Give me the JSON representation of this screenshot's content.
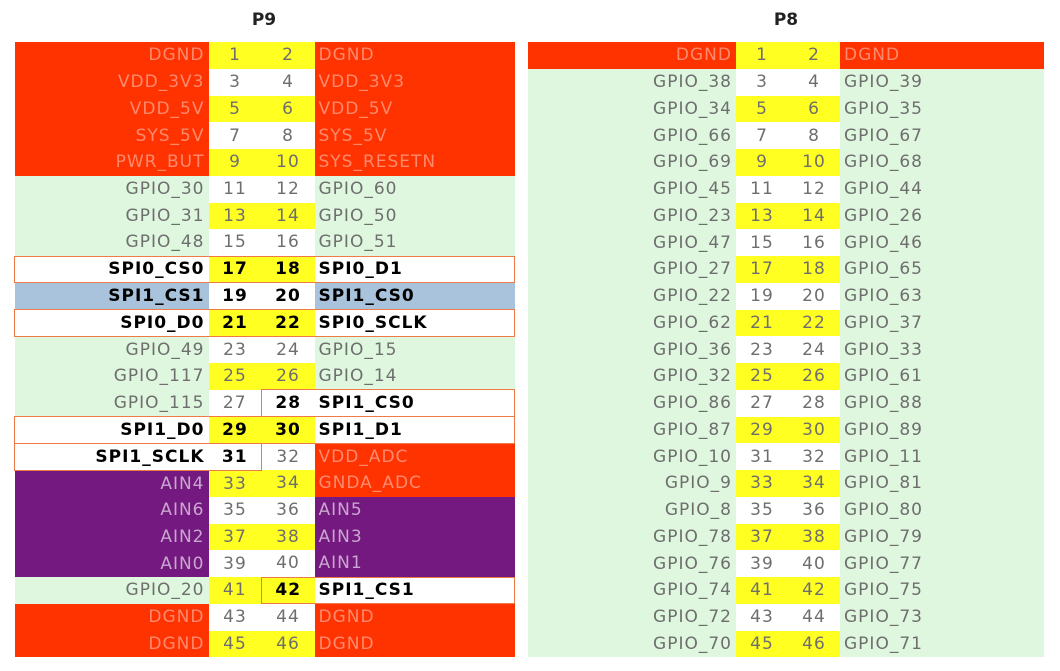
{
  "p9": {
    "title": "P9",
    "rows": [
      {
        "l": "DGND",
        "p1": "1",
        "p2": "2",
        "r": "DGND"
      },
      {
        "l": "VDD_3V3",
        "p1": "3",
        "p2": "4",
        "r": "VDD_3V3"
      },
      {
        "l": "VDD_5V",
        "p1": "5",
        "p2": "6",
        "r": "VDD_5V"
      },
      {
        "l": "SYS_5V",
        "p1": "7",
        "p2": "8",
        "r": "SYS_5V"
      },
      {
        "l": "PWR_BUT",
        "p1": "9",
        "p2": "10",
        "r": "SYS_RESETN"
      },
      {
        "l": "GPIO_30",
        "p1": "11",
        "p2": "12",
        "r": "GPIO_60"
      },
      {
        "l": "GPIO_31",
        "p1": "13",
        "p2": "14",
        "r": "GPIO_50"
      },
      {
        "l": "GPIO_48",
        "p1": "15",
        "p2": "16",
        "r": "GPIO_51"
      },
      {
        "l": "SPI0_CS0",
        "p1": "17",
        "p2": "18",
        "r": "SPI0_D1"
      },
      {
        "l": "SPI1_CS1",
        "p1": "19",
        "p2": "20",
        "r": "SPI1_CS0"
      },
      {
        "l": "SPI0_D0",
        "p1": "21",
        "p2": "22",
        "r": "SPI0_SCLK"
      },
      {
        "l": "GPIO_49",
        "p1": "23",
        "p2": "24",
        "r": "GPIO_15"
      },
      {
        "l": "GPIO_117",
        "p1": "25",
        "p2": "26",
        "r": "GPIO_14"
      },
      {
        "l": "GPIO_115",
        "p1": "27",
        "p2": "28",
        "r": "SPI1_CS0"
      },
      {
        "l": "SPI1_D0",
        "p1": "29",
        "p2": "30",
        "r": "SPI1_D1"
      },
      {
        "l": "SPI1_SCLK",
        "p1": "31",
        "p2": "32",
        "r": "VDD_ADC"
      },
      {
        "l": "AIN4",
        "p1": "33",
        "p2": "34",
        "r": "GNDA_ADC"
      },
      {
        "l": "AIN6",
        "p1": "35",
        "p2": "36",
        "r": "AIN5"
      },
      {
        "l": "AIN2",
        "p1": "37",
        "p2": "38",
        "r": "AIN3"
      },
      {
        "l": "AIN0",
        "p1": "39",
        "p2": "40",
        "r": "AIN1"
      },
      {
        "l": "GPIO_20",
        "p1": "41",
        "p2": "42",
        "r": "SPI1_CS1"
      },
      {
        "l": "DGND",
        "p1": "43",
        "p2": "44",
        "r": "DGND"
      },
      {
        "l": "DGND",
        "p1": "45",
        "p2": "46",
        "r": "DGND"
      }
    ]
  },
  "p8": {
    "title": "P8",
    "rows": [
      {
        "l": "DGND",
        "p1": "1",
        "p2": "2",
        "r": "DGND"
      },
      {
        "l": "GPIO_38",
        "p1": "3",
        "p2": "4",
        "r": "GPIO_39"
      },
      {
        "l": "GPIO_34",
        "p1": "5",
        "p2": "6",
        "r": "GPIO_35"
      },
      {
        "l": "GPIO_66",
        "p1": "7",
        "p2": "8",
        "r": "GPIO_67"
      },
      {
        "l": "GPIO_69",
        "p1": "9",
        "p2": "10",
        "r": "GPIO_68"
      },
      {
        "l": "GPIO_45",
        "p1": "11",
        "p2": "12",
        "r": "GPIO_44"
      },
      {
        "l": "GPIO_23",
        "p1": "13",
        "p2": "14",
        "r": "GPIO_26"
      },
      {
        "l": "GPIO_47",
        "p1": "15",
        "p2": "16",
        "r": "GPIO_46"
      },
      {
        "l": "GPIO_27",
        "p1": "17",
        "p2": "18",
        "r": "GPIO_65"
      },
      {
        "l": "GPIO_22",
        "p1": "19",
        "p2": "20",
        "r": "GPIO_63"
      },
      {
        "l": "GPIO_62",
        "p1": "21",
        "p2": "22",
        "r": "GPIO_37"
      },
      {
        "l": "GPIO_36",
        "p1": "23",
        "p2": "24",
        "r": "GPIO_33"
      },
      {
        "l": "GPIO_32",
        "p1": "25",
        "p2": "26",
        "r": "GPIO_61"
      },
      {
        "l": "GPIO_86",
        "p1": "27",
        "p2": "28",
        "r": "GPIO_88"
      },
      {
        "l": "GPIO_87",
        "p1": "29",
        "p2": "30",
        "r": "GPIO_89"
      },
      {
        "l": "GPIO_10",
        "p1": "31",
        "p2": "32",
        "r": "GPIO_11"
      },
      {
        "l": "GPIO_9",
        "p1": "33",
        "p2": "34",
        "r": "GPIO_81"
      },
      {
        "l": "GPIO_8",
        "p1": "35",
        "p2": "36",
        "r": "GPIO_80"
      },
      {
        "l": "GPIO_78",
        "p1": "37",
        "p2": "38",
        "r": "GPIO_79"
      },
      {
        "l": "GPIO_76",
        "p1": "39",
        "p2": "40",
        "r": "GPIO_77"
      },
      {
        "l": "GPIO_74",
        "p1": "41",
        "p2": "42",
        "r": "GPIO_75"
      },
      {
        "l": "GPIO_72",
        "p1": "43",
        "p2": "44",
        "r": "GPIO_73"
      },
      {
        "l": "GPIO_70",
        "p1": "45",
        "p2": "46",
        "r": "GPIO_71"
      }
    ]
  },
  "colors": {
    "power_red": "#ff3300",
    "gpio_green": "#dff7df",
    "analog_purple": "#74197f",
    "pin_yellow": "#ffff22",
    "spi_blue": "#a9c3dd",
    "highlight_border": "#ee7a45"
  }
}
